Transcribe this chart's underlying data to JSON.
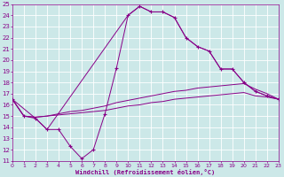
{
  "xlabel": "Windchill (Refroidissement éolien,°C)",
  "bg_color": "#cce8e8",
  "grid_color": "#ffffff",
  "line_color": "#880088",
  "xlim": [
    0,
    23
  ],
  "ylim": [
    11,
    25
  ],
  "xticks": [
    0,
    1,
    2,
    3,
    4,
    5,
    6,
    7,
    8,
    9,
    10,
    11,
    12,
    13,
    14,
    15,
    16,
    17,
    18,
    19,
    20,
    21,
    22,
    23
  ],
  "yticks": [
    11,
    12,
    13,
    14,
    15,
    16,
    17,
    18,
    19,
    20,
    21,
    22,
    23,
    24,
    25
  ],
  "line_main_x": [
    0,
    1,
    2,
    3,
    4,
    5,
    6,
    7,
    8,
    9,
    10,
    11,
    12,
    13,
    14,
    15,
    16,
    17,
    18,
    19,
    20,
    21,
    22,
    23
  ],
  "line_main_y": [
    16.5,
    15.0,
    14.8,
    13.8,
    13.8,
    12.3,
    11.2,
    12.0,
    15.2,
    19.3,
    24.0,
    24.8,
    24.3,
    24.3,
    23.8,
    22.0,
    21.2,
    20.8,
    19.2,
    19.2,
    18.0,
    17.2,
    16.8,
    16.5
  ],
  "line_a_x": [
    0,
    1,
    2,
    3,
    4,
    5,
    6,
    7,
    8,
    9,
    10,
    11,
    12,
    13,
    14,
    15,
    16,
    17,
    18,
    19,
    20,
    21,
    22,
    23
  ],
  "line_a_y": [
    16.5,
    15.0,
    14.9,
    15.0,
    15.1,
    15.2,
    15.3,
    15.4,
    15.5,
    15.7,
    15.9,
    16.0,
    16.2,
    16.3,
    16.5,
    16.6,
    16.7,
    16.8,
    16.9,
    17.0,
    17.1,
    16.8,
    16.7,
    16.5
  ],
  "line_b_x": [
    0,
    1,
    2,
    3,
    4,
    5,
    6,
    7,
    8,
    9,
    10,
    11,
    12,
    13,
    14,
    15,
    16,
    17,
    18,
    19,
    20,
    21,
    22,
    23
  ],
  "line_b_y": [
    16.5,
    15.0,
    14.9,
    15.0,
    15.2,
    15.4,
    15.5,
    15.7,
    15.9,
    16.2,
    16.4,
    16.6,
    16.8,
    17.0,
    17.2,
    17.3,
    17.5,
    17.6,
    17.7,
    17.8,
    17.9,
    17.4,
    17.0,
    16.5
  ],
  "line_c_x": [
    0,
    2,
    3,
    10,
    11,
    12,
    13,
    14,
    15,
    16,
    17,
    18,
    19,
    20,
    21,
    22,
    23
  ],
  "line_c_y": [
    16.5,
    14.8,
    13.8,
    24.0,
    24.8,
    24.3,
    24.3,
    23.8,
    22.0,
    21.2,
    20.8,
    19.2,
    19.2,
    18.0,
    17.2,
    16.8,
    16.5
  ]
}
